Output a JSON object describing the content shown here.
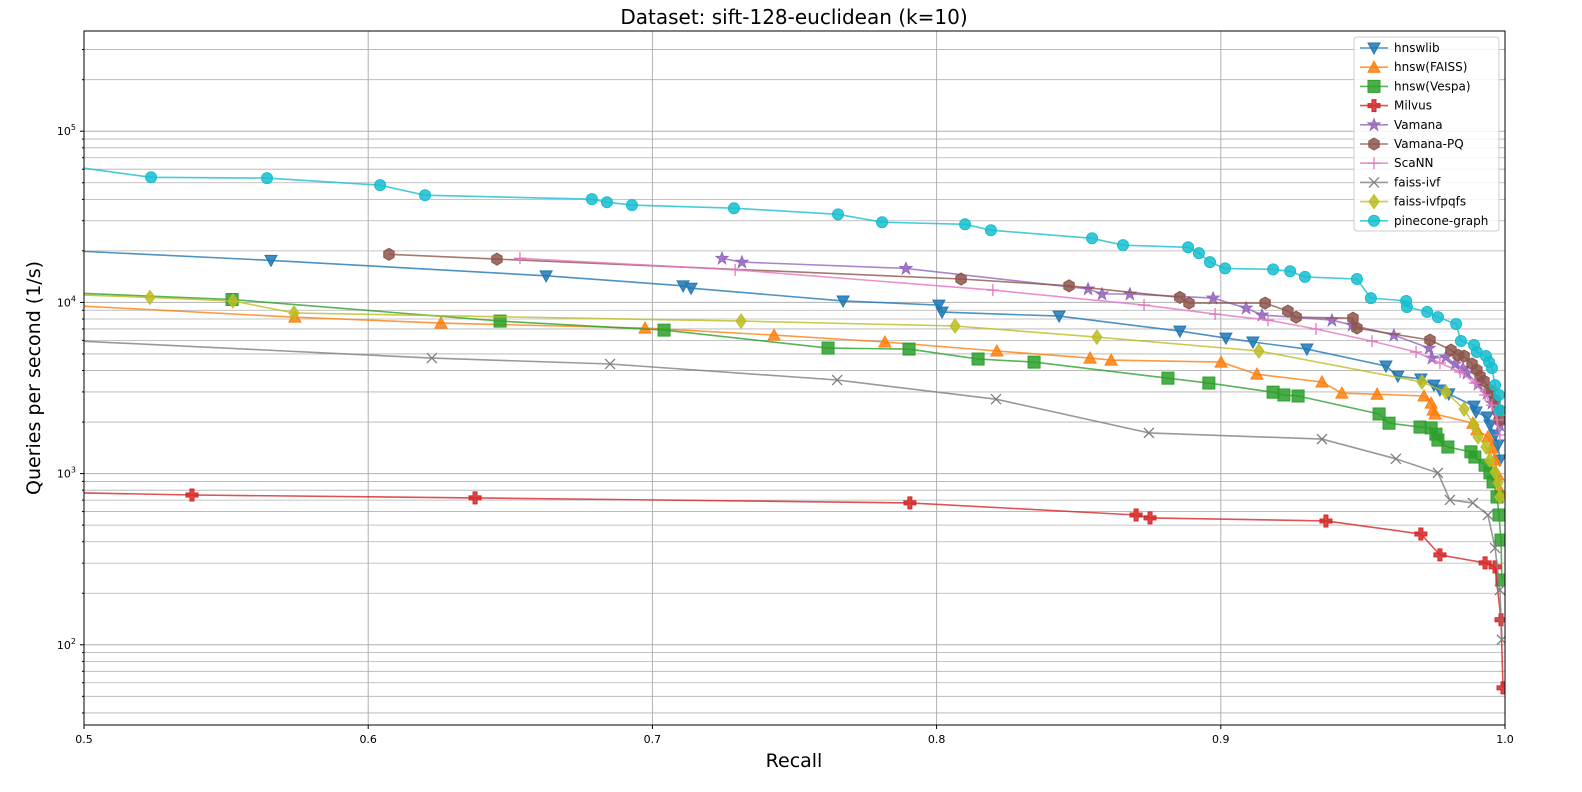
{
  "chart_data": {
    "type": "line",
    "title": "Dataset: sift-128-euclidean (k=10)",
    "xlabel": "Recall",
    "ylabel": "Queries per second (1/s)",
    "xlim": [
      0.5,
      1.0
    ],
    "ylim": [
      34,
      385000
    ],
    "yscale": "log",
    "grid": true,
    "legend_position": "top-right",
    "x_ticks": [
      "0.5",
      "0.6",
      "0.7",
      "0.8",
      "0.9",
      "1.0"
    ],
    "y_ticks": [
      {
        "base": "10",
        "exp": "2"
      },
      {
        "base": "10",
        "exp": "3"
      },
      {
        "base": "10",
        "exp": "4"
      },
      {
        "base": "10",
        "exp": "5"
      }
    ],
    "series": [
      {
        "name": "hnswlib",
        "color": "#1f77b4",
        "marker": "triangle-down",
        "x": [
          0.45,
          0.5658,
          0.6626,
          0.7108,
          0.7136,
          0.7671,
          0.8008,
          0.8019,
          0.8431,
          0.8856,
          0.9018,
          0.9113,
          0.9303,
          0.9581,
          0.9623,
          0.9704,
          0.975,
          0.9771,
          0.9802,
          0.9891,
          0.9898,
          0.9937,
          0.9947,
          0.9965,
          0.9975,
          0.9982
        ],
        "y": [
          21800,
          17600,
          14300,
          12500,
          12100,
          10200,
          9650,
          8780,
          8320,
          6800,
          6190,
          5870,
          5340,
          4250,
          3710,
          3570,
          3290,
          3080,
          2920,
          2480,
          2290,
          2140,
          1920,
          1680,
          1470,
          1200
        ]
      },
      {
        "name": "hnsw(FAISS)",
        "color": "#ff7f0e",
        "marker": "triangle-up",
        "x": [
          0.45,
          0.5742,
          0.6256,
          0.6974,
          0.7428,
          0.7818,
          0.8212,
          0.854,
          0.8614,
          0.9001,
          0.9127,
          0.9356,
          0.9426,
          0.955,
          0.9715,
          0.974,
          0.9747,
          0.9754,
          0.9887,
          0.9901,
          0.994,
          0.9954,
          0.9965,
          0.9975,
          0.9982
        ],
        "y": [
          10500,
          8200,
          7570,
          7080,
          6440,
          5870,
          5200,
          4730,
          4600,
          4480,
          3810,
          3430,
          2950,
          2910,
          2840,
          2580,
          2350,
          2230,
          1970,
          1800,
          1640,
          1410,
          1200,
          981,
          802
        ]
      },
      {
        "name": "hnsw(Vespa)",
        "color": "#2ca02c",
        "marker": "square",
        "x": [
          0.45,
          0.5521,
          0.6464,
          0.7041,
          0.7618,
          0.7903,
          0.8146,
          0.8343,
          0.8814,
          0.8958,
          0.9184,
          0.9222,
          0.9272,
          0.9557,
          0.9592,
          0.9701,
          0.974,
          0.9757,
          0.9764,
          0.9799,
          0.988,
          0.9894,
          0.993,
          0.9947,
          0.9958,
          0.9972,
          0.9979,
          0.9986,
          0.9989
        ],
        "y": [
          12200,
          10400,
          7780,
          6890,
          5410,
          5340,
          4670,
          4480,
          3610,
          3380,
          2990,
          2880,
          2840,
          2230,
          1970,
          1870,
          1850,
          1700,
          1570,
          1430,
          1340,
          1250,
          1120,
          1010,
          894,
          730,
          573,
          409,
          239
        ]
      },
      {
        "name": "Milvus",
        "color": "#d62728",
        "marker": "plus-filled",
        "x": [
          0.45,
          0.538,
          0.6376,
          0.7906,
          0.8702,
          0.8751,
          0.937,
          0.9704,
          0.9771,
          0.993,
          0.9965,
          0.9986,
          0.9993
        ],
        "y": [
          800,
          750,
          721,
          674,
          573,
          551,
          529,
          444,
          335,
          301,
          285,
          140,
          56
        ]
      },
      {
        "name": "Vamana",
        "color": "#9467bd",
        "marker": "star",
        "x": [
          0.7245,
          0.7315,
          0.7892,
          0.8533,
          0.8582,
          0.868,
          0.8973,
          0.9089,
          0.9145,
          0.9391,
          0.9462,
          0.9609,
          0.9733,
          0.9743,
          0.9792,
          0.9824,
          0.9852,
          0.9866,
          0.9905,
          0.9937,
          0.9954,
          0.9972,
          0.9982
        ],
        "y": [
          18100,
          17200,
          15800,
          12000,
          11200,
          11200,
          10600,
          9270,
          8440,
          7880,
          7370,
          6440,
          5410,
          4730,
          4800,
          4370,
          4130,
          3870,
          3330,
          2950,
          2580,
          2200,
          1920
        ]
      },
      {
        "name": "Vamana-PQ",
        "color": "#8c564b",
        "marker": "hexagon",
        "x": [
          0.6073,
          0.6453,
          0.8086,
          0.8466,
          0.8856,
          0.8888,
          0.9156,
          0.9236,
          0.9265,
          0.9465,
          0.9479,
          0.9736,
          0.981,
          0.9835,
          0.9856,
          0.9884,
          0.9901,
          0.9912,
          0.9926,
          0.9947,
          0.9965,
          0.9975,
          0.9982
        ],
        "y": [
          19100,
          17900,
          13700,
          12500,
          10700,
          9910,
          9910,
          8900,
          8200,
          8090,
          7080,
          6030,
          5270,
          4920,
          4860,
          4370,
          4030,
          3710,
          3480,
          3080,
          2690,
          2350,
          2060
        ]
      },
      {
        "name": "ScaNN",
        "color": "#e377c2",
        "marker": "plus",
        "x": [
          0.6534,
          0.7291,
          0.8198,
          0.873,
          0.898,
          0.9166,
          0.9335,
          0.9532,
          0.9687,
          0.9771,
          0.9842,
          0.9894,
          0.993,
          0.9954,
          0.9972,
          0.9982
        ],
        "y": [
          18100,
          15500,
          11800,
          9650,
          8550,
          7880,
          6990,
          5940,
          5130,
          4430,
          3920,
          3380,
          2880,
          2510,
          2060,
          1680
        ]
      },
      {
        "name": "faiss-ivf",
        "color": "#7f7f7f",
        "marker": "x",
        "x": [
          0.45,
          0.6224,
          0.6851,
          0.765,
          0.8209,
          0.8747,
          0.9356,
          0.9616,
          0.9764,
          0.9806,
          0.9887,
          0.994,
          0.9965,
          0.9982,
          0.9989
        ],
        "y": [
          6500,
          4730,
          4370,
          3520,
          2720,
          1730,
          1590,
          1220,
          1010,
          702,
          674,
          573,
          368,
          209,
          107
        ]
      },
      {
        "name": "faiss-ivfpqfs",
        "color": "#bcbd22",
        "marker": "diamond",
        "x": [
          0.45,
          0.5232,
          0.5524,
          0.5739,
          0.7312,
          0.8065,
          0.8564,
          0.9134,
          0.9708,
          0.9792,
          0.9856,
          0.9891,
          0.9905,
          0.9933,
          0.9947,
          0.9965,
          0.9975,
          0.9982
        ],
        "y": [
          11800,
          10700,
          10200,
          8670,
          7780,
          7280,
          6270,
          5200,
          3430,
          2990,
          2380,
          1920,
          1640,
          1430,
          1200,
          1020,
          881,
          730
        ]
      },
      {
        "name": "pinecone-graph",
        "color": "#17becf",
        "marker": "circle",
        "x": [
          0.45,
          0.5236,
          0.5644,
          0.6042,
          0.62,
          0.6787,
          0.684,
          0.6928,
          0.7287,
          0.7653,
          0.7808,
          0.81,
          0.8191,
          0.8547,
          0.8656,
          0.8885,
          0.8923,
          0.8962,
          0.9015,
          0.9184,
          0.9244,
          0.9296,
          0.9479,
          0.9528,
          0.9652,
          0.9655,
          0.9726,
          0.9764,
          0.9828,
          0.9845,
          0.9891,
          0.9901,
          0.9933,
          0.9944,
          0.9954,
          0.9965,
          0.9979,
          0.9982
        ],
        "y": [
          79000,
          53800,
          53200,
          48400,
          42300,
          40100,
          38500,
          37000,
          35500,
          32700,
          29400,
          28600,
          26400,
          23700,
          21600,
          21000,
          19400,
          17200,
          15800,
          15600,
          15200,
          14100,
          13700,
          10600,
          10200,
          9400,
          8800,
          8200,
          7480,
          5950,
          5640,
          5130,
          4860,
          4480,
          4130,
          3290,
          2880,
          2350
        ]
      }
    ]
  }
}
